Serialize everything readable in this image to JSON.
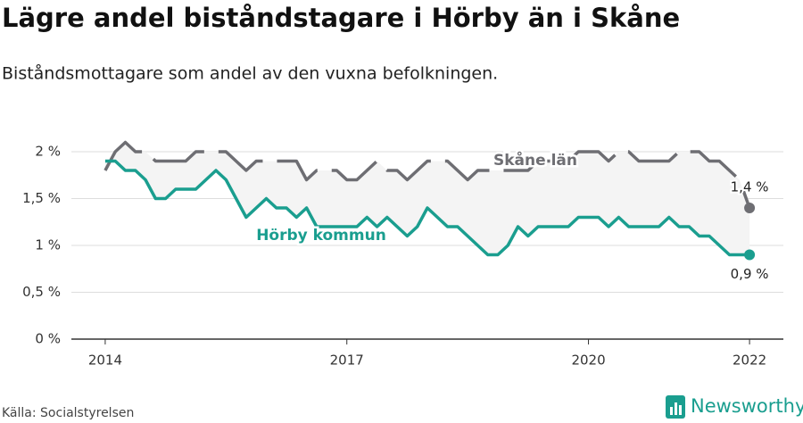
{
  "chart_data": {
    "type": "line",
    "title": "Lägre andel biståndstagare i Hörby än i Skåne",
    "subtitle": "Biståndsmottagare som andel av den vuxna befolkningen.",
    "source": "Källa: Socialstyrelsen",
    "brand": "Newsworthy",
    "x": [
      2014,
      2014.125,
      2014.25,
      2014.375,
      2014.5,
      2014.625,
      2014.75,
      2014.875,
      2015,
      2015.125,
      2015.25,
      2015.375,
      2015.5,
      2015.625,
      2015.75,
      2015.875,
      2016,
      2016.125,
      2016.25,
      2016.375,
      2016.5,
      2016.625,
      2016.75,
      2016.875,
      2017,
      2017.125,
      2017.25,
      2017.375,
      2017.5,
      2017.625,
      2017.75,
      2017.875,
      2018,
      2018.125,
      2018.25,
      2018.375,
      2018.5,
      2018.625,
      2018.75,
      2018.875,
      2019,
      2019.125,
      2019.25,
      2019.375,
      2019.5,
      2019.625,
      2019.75,
      2019.875,
      2020,
      2020.125,
      2020.25,
      2020.375,
      2020.5,
      2020.625,
      2020.75,
      2020.875,
      2021,
      2021.125,
      2021.25,
      2021.375,
      2021.5,
      2021.625,
      2021.75,
      2021.875,
      2022
    ],
    "series": [
      {
        "name": "Skåne län",
        "color": "#6e6e73",
        "dashed": true,
        "end_label": "1,4 %",
        "values": [
          1.8,
          2.0,
          2.1,
          2.0,
          2.0,
          1.9,
          1.9,
          1.9,
          1.9,
          2.0,
          2.0,
          2.0,
          2.0,
          1.9,
          1.8,
          1.9,
          1.9,
          1.9,
          1.9,
          1.9,
          1.7,
          1.8,
          1.8,
          1.8,
          1.7,
          1.7,
          1.8,
          1.9,
          1.8,
          1.8,
          1.7,
          1.8,
          1.9,
          1.9,
          1.9,
          1.8,
          1.7,
          1.8,
          1.8,
          1.8,
          1.8,
          1.8,
          1.8,
          1.9,
          1.9,
          1.9,
          1.9,
          2.0,
          2.0,
          2.0,
          1.9,
          2.0,
          2.0,
          1.9,
          1.9,
          1.9,
          1.9,
          2.0,
          2.0,
          2.0,
          1.9,
          1.9,
          1.8,
          1.7,
          1.4
        ]
      },
      {
        "name": "Hörby kommun",
        "color": "#1a9e8f",
        "dashed": false,
        "end_label": "0,9 %",
        "values": [
          1.9,
          1.9,
          1.8,
          1.8,
          1.7,
          1.5,
          1.5,
          1.6,
          1.6,
          1.6,
          1.7,
          1.8,
          1.7,
          1.5,
          1.3,
          1.4,
          1.5,
          1.4,
          1.4,
          1.3,
          1.4,
          1.2,
          1.2,
          1.2,
          1.2,
          1.2,
          1.3,
          1.2,
          1.3,
          1.2,
          1.1,
          1.2,
          1.4,
          1.3,
          1.2,
          1.2,
          1.1,
          1.0,
          0.9,
          0.9,
          1.0,
          1.2,
          1.1,
          1.2,
          1.2,
          1.2,
          1.2,
          1.3,
          1.3,
          1.3,
          1.2,
          1.3,
          1.2,
          1.2,
          1.2,
          1.2,
          1.3,
          1.2,
          1.2,
          1.1,
          1.1,
          1.0,
          0.9,
          0.9,
          0.9
        ]
      }
    ],
    "xlim": [
      2013.58,
      2022.42
    ],
    "ylim": [
      0,
      2.2
    ],
    "xticks": [
      2014,
      2017,
      2020,
      2022
    ],
    "yticks": [
      {
        "value": 0,
        "label": "0 %"
      },
      {
        "value": 0.5,
        "label": "0,5 %"
      },
      {
        "value": 1,
        "label": "1 %"
      },
      {
        "value": 1.5,
        "label": "1,5 %"
      },
      {
        "value": 2,
        "label": "2 %"
      }
    ],
    "grid": true
  }
}
